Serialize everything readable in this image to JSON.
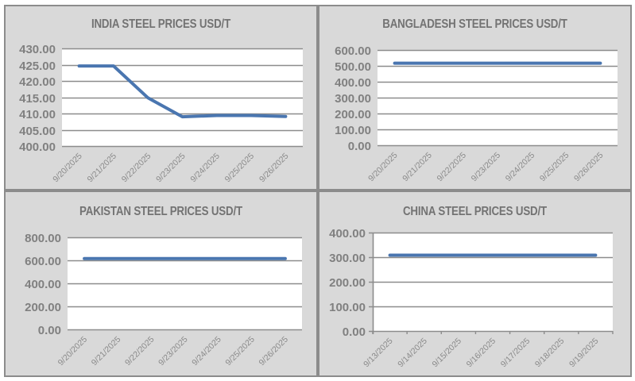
{
  "chart_data": [
    {
      "id": "india",
      "type": "line",
      "title": "INDIA STEEL PRICES USD/T",
      "xlabel": "",
      "ylabel": "",
      "categories": [
        "9/20/2025",
        "9/21/2025",
        "9/22/2025",
        "9/23/2025",
        "9/24/2025",
        "9/25/2025",
        "9/26/2025"
      ],
      "series": [
        {
          "name": "India",
          "values": [
            424.6,
            424.6,
            414.8,
            409.0,
            409.4,
            409.4,
            409.1
          ]
        }
      ],
      "ylim": [
        400,
        430
      ],
      "yticks": [
        "400.00",
        "405.00",
        "410.00",
        "415.00",
        "420.00",
        "425.00",
        "430.00"
      ],
      "grid": true,
      "legend": "none"
    },
    {
      "id": "bangladesh",
      "type": "line",
      "title": "BANGLADESH STEEL PRICES USD/T",
      "xlabel": "",
      "ylabel": "",
      "categories": [
        "9/20/2025",
        "9/21/2025",
        "9/22/2025",
        "9/23/2025",
        "9/24/2025",
        "9/25/2025",
        "9/26/2025"
      ],
      "series": [
        {
          "name": "Bangladesh",
          "values": [
            517,
            517,
            517,
            517,
            517,
            517,
            517
          ]
        }
      ],
      "ylim": [
        0,
        600
      ],
      "yticks": [
        "0.00",
        "100.00",
        "200.00",
        "300.00",
        "400.00",
        "500.00",
        "600.00"
      ],
      "grid": true,
      "legend": "none"
    },
    {
      "id": "pakistan",
      "type": "line",
      "title": "PAKISTAN STEEL PRICES USD/T",
      "xlabel": "",
      "ylabel": "",
      "categories": [
        "9/20/2025",
        "9/21/2025",
        "9/22/2025",
        "9/23/2025",
        "9/24/2025",
        "9/25/2025",
        "9/26/2025"
      ],
      "series": [
        {
          "name": "Pakistan",
          "values": [
            615,
            615,
            615,
            615,
            615,
            615,
            615
          ]
        }
      ],
      "ylim": [
        0,
        800
      ],
      "yticks": [
        "0.00",
        "200.00",
        "400.00",
        "600.00",
        "800.00"
      ],
      "grid": true,
      "legend": "none"
    },
    {
      "id": "china",
      "type": "line",
      "title": "CHINA STEEL PRICES USD/T",
      "xlabel": "",
      "ylabel": "",
      "categories": [
        "9/13/2025",
        "9/14/2025",
        "9/15/2025",
        "9/16/2025",
        "9/17/2025",
        "9/18/2025",
        "9/19/2025"
      ],
      "series": [
        {
          "name": "China",
          "values": [
            308,
            308,
            308,
            308,
            308,
            308,
            308
          ]
        }
      ],
      "ylim": [
        0,
        400
      ],
      "yticks": [
        "0.00",
        "100.00",
        "200.00",
        "300.00",
        "400.00"
      ],
      "grid": true,
      "legend": "none"
    }
  ],
  "style": {
    "line_color": "#4a76b0",
    "panel_bg": "#d9d9d9",
    "plot_bg": "#ffffff",
    "grid_color": "#8c8c8c",
    "text_color": "#808080"
  }
}
